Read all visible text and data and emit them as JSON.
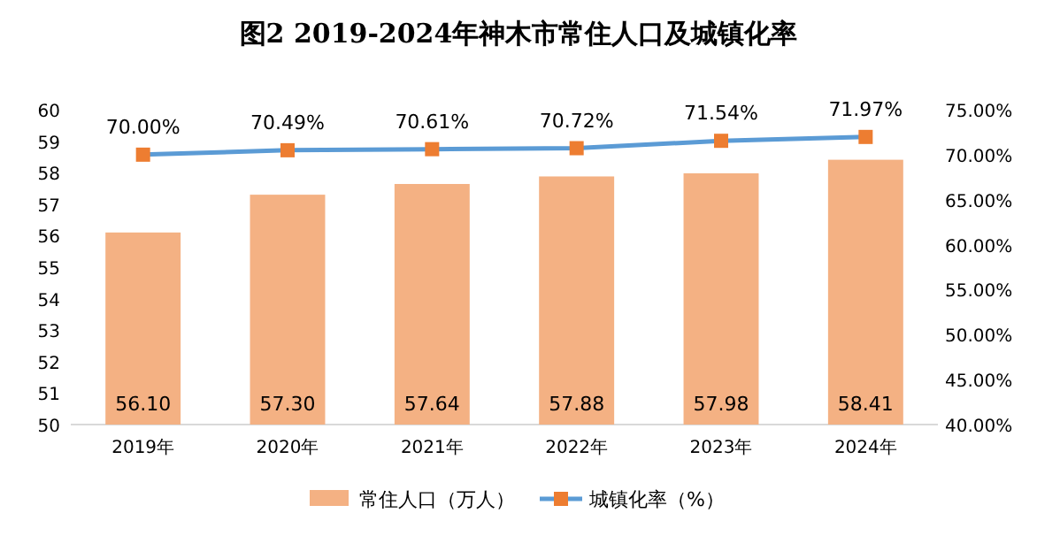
{
  "chart_data": {
    "type": "bar",
    "title": "图2 2019-2024年神木市常住人口及城镇化率",
    "categories": [
      "2019年",
      "2020年",
      "2021年",
      "2022年",
      "2023年",
      "2024年"
    ],
    "ylim": [
      50,
      60
    ],
    "yticks": [
      50,
      51,
      52,
      53,
      54,
      55,
      56,
      57,
      58,
      59,
      60
    ],
    "y2lim": [
      40,
      75
    ],
    "y2ticks": [
      {
        "value": 40,
        "label": "40.00%"
      },
      {
        "value": 45,
        "label": "45.00%"
      },
      {
        "value": 50,
        "label": "50.00%"
      },
      {
        "value": 55,
        "label": "55.00%"
      },
      {
        "value": 60,
        "label": "60.00%"
      },
      {
        "value": 65,
        "label": "65.00%"
      },
      {
        "value": 70,
        "label": "70.00%"
      },
      {
        "value": 75,
        "label": "75.00%"
      }
    ],
    "legend": "bottom",
    "series": [
      {
        "name": "常住人口（万人）",
        "color": "#f4b183",
        "values": [
          56.1,
          57.3,
          57.64,
          57.88,
          57.98,
          58.41
        ],
        "value_labels": [
          "56.10",
          "57.30",
          "57.64",
          "57.88",
          "57.98",
          "58.41"
        ]
      },
      {
        "name": "城镇化率（%）",
        "type": "line",
        "axis": "y2",
        "color": "#5b9bd5",
        "marker": "square",
        "values": [
          70.0,
          70.49,
          70.61,
          70.72,
          71.54,
          71.97
        ],
        "value_labels": [
          "70.00%",
          "70.49%",
          "70.61%",
          "70.72%",
          "71.54%",
          "71.97%"
        ]
      }
    ]
  }
}
